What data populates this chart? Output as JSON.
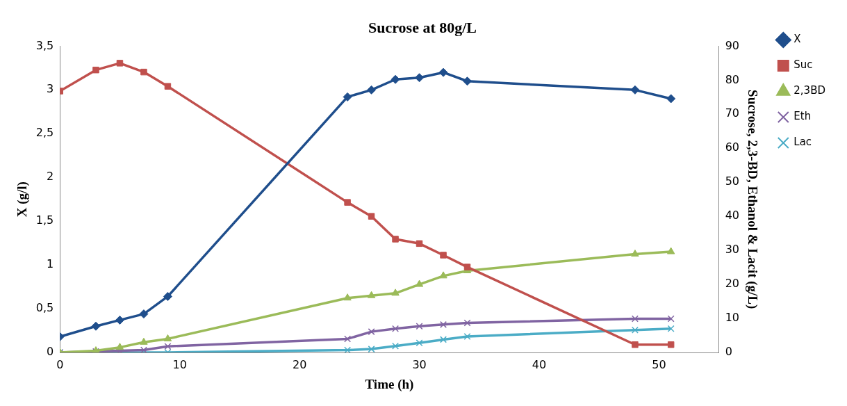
{
  "chart_data": {
    "type": "line",
    "title": "Sucrose at 80g/L",
    "xlabel": "Time (h)",
    "ylabel": "X (g/l)",
    "y2label": "Sucrose, 2,3-BD, Ethanol & Lacit (g/L)",
    "x": [
      0,
      3,
      5,
      7,
      9,
      24,
      26,
      28,
      30,
      32,
      34,
      48,
      51
    ],
    "series": [
      {
        "name": "X",
        "color": "#1f4e8c",
        "marker": "diamond",
        "values": [
          0.18,
          0.3,
          0.37,
          0.44,
          0.64,
          2.92,
          3.0,
          3.12,
          3.14,
          3.2,
          3.1,
          3.0,
          2.9
        ]
      },
      {
        "name": "Suc",
        "color": "#c0504d",
        "marker": "square",
        "axis": "y2",
        "values": [
          76.8,
          83,
          85,
          82.4,
          78.2,
          44.1,
          40,
          33.3,
          32,
          28.6,
          25.1,
          2.3,
          2.3
        ]
      },
      {
        "name": "2,3BD",
        "color": "#9bbb59",
        "marker": "triangle",
        "axis": "y2",
        "values": [
          0,
          0.5,
          1.5,
          3,
          4,
          16,
          16.7,
          17.4,
          20,
          22.5,
          24,
          28.9,
          29.6
        ]
      },
      {
        "name": "Eth",
        "color": "#8064a2",
        "marker": "cross",
        "axis": "y2",
        "values": [
          0,
          0.3,
          0.5,
          0.7,
          1.8,
          4,
          6.1,
          7,
          7.7,
          8.2,
          8.7,
          9.9,
          9.9
        ]
      },
      {
        "name": "Lac",
        "color": "#4bacc6",
        "marker": "cross",
        "axis": "y2",
        "values": [
          0,
          0,
          0,
          0,
          0,
          0.7,
          1,
          1.9,
          2.8,
          3.8,
          4.7,
          6.6,
          7
        ]
      }
    ],
    "xlim": [
      0,
      55
    ],
    "xticks": [
      0,
      10,
      20,
      30,
      40,
      50
    ],
    "ylim": [
      0,
      3.5
    ],
    "yticks": [
      0,
      {
        "value": 0.5,
        "label": "0,5"
      },
      1,
      {
        "value": 1.5,
        "label": "1,5"
      },
      2,
      {
        "value": 2.5,
        "label": "2,5"
      },
      3,
      {
        "value": 3.5,
        "label": "3,5"
      }
    ],
    "y2lim": [
      0,
      90
    ],
    "y2ticks": [
      0,
      10,
      20,
      30,
      40,
      50,
      60,
      70,
      80,
      90
    ],
    "grid": false,
    "legend": "right"
  }
}
